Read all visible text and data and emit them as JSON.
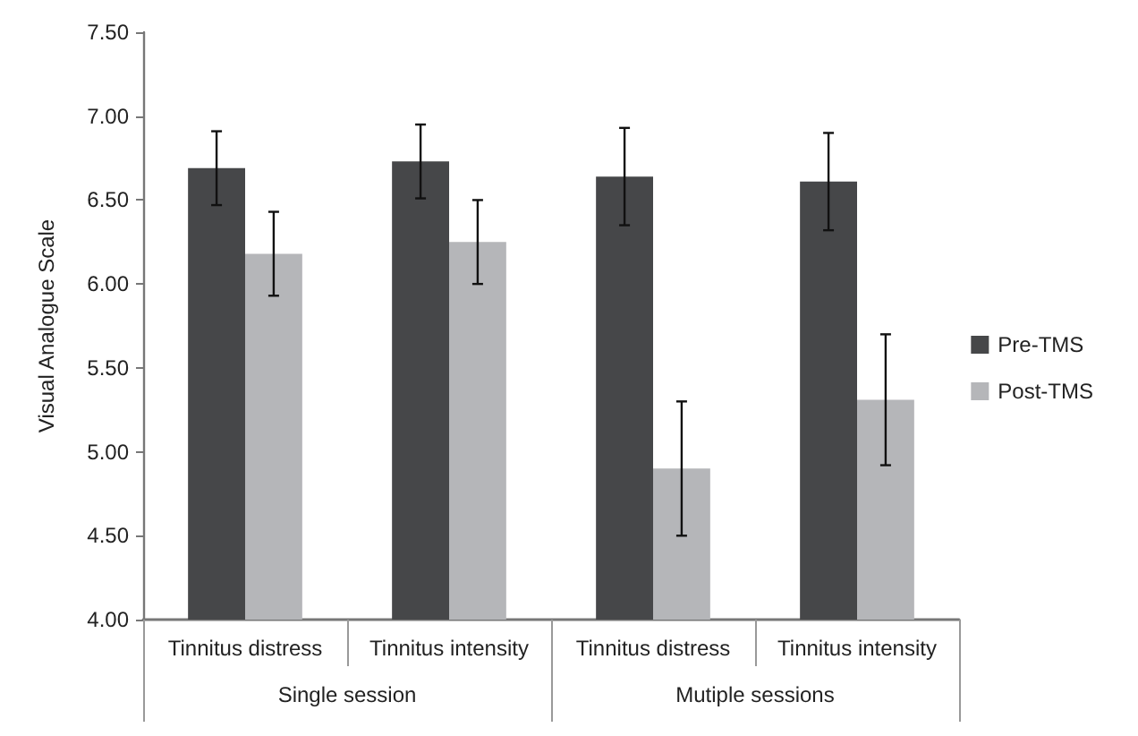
{
  "chart_data": {
    "type": "bar",
    "ylabel": "Visual Analogue Scale",
    "categories": [
      "Tinnitus distress",
      "Tinnitus intensity",
      "Tinnitus distress",
      "Tinnitus intensity"
    ],
    "series": [
      {
        "name": "Pre-TMS",
        "color": "#464749",
        "values": [
          6.69,
          6.73,
          6.64,
          6.61
        ],
        "errors": [
          0.22,
          0.22,
          0.29,
          0.29
        ]
      },
      {
        "name": "Post-TMS",
        "color": "#b5b6b9",
        "values": [
          6.18,
          6.25,
          4.9,
          5.31
        ],
        "errors": [
          0.25,
          0.25,
          0.4,
          0.39
        ]
      }
    ],
    "annotations": [
      "Single session",
      "Mutiple sessions"
    ],
    "ylim": [
      4,
      7.5
    ],
    "yticks": [
      {
        "value": 4,
        "label": "4.00"
      },
      {
        "value": 4.5,
        "label": "4.50"
      },
      {
        "value": 5,
        "label": "5.00"
      },
      {
        "value": 5.5,
        "label": "5.50"
      },
      {
        "value": 6,
        "label": "6.00"
      },
      {
        "value": 6.5,
        "label": "6.50"
      },
      {
        "value": 7,
        "label": "7.00"
      },
      {
        "value": 7.5,
        "label": "7.50"
      }
    ],
    "grid": false,
    "legend": "right"
  }
}
